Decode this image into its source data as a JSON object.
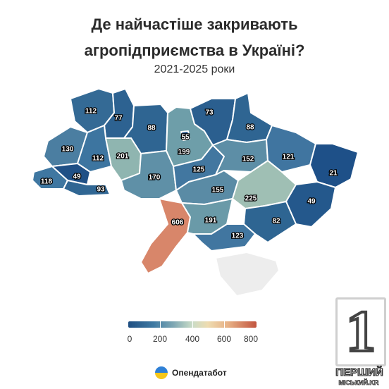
{
  "title_line1": "Де найчастіше закривають",
  "title_line2": "агропідприємства в Україні?",
  "subtitle": "2021-2025 роки",
  "regions": [
    {
      "id": "volyn",
      "value": "112",
      "color": "#346a95"
    },
    {
      "id": "rivne",
      "value": "77",
      "color": "#2d6291"
    },
    {
      "id": "zhytomyr",
      "value": "88",
      "color": "#2f6592"
    },
    {
      "id": "kyiv-oblast",
      "value": "199",
      "color": "#6e9ea9"
    },
    {
      "id": "kyiv-city",
      "value": "55",
      "color": "#1f5086"
    },
    {
      "id": "chernihiv",
      "value": "73",
      "color": "#2b5f8f"
    },
    {
      "id": "sumy",
      "value": "88",
      "color": "#2f6592"
    },
    {
      "id": "lviv",
      "value": "130",
      "color": "#4b7ea1"
    },
    {
      "id": "ternopil",
      "value": "112",
      "color": "#3d75a0"
    },
    {
      "id": "khmelnytskyi",
      "value": "201",
      "color": "#8fb5b0"
    },
    {
      "id": "zakarpattia",
      "value": "118",
      "color": "#3f77a1"
    },
    {
      "id": "ivano-frankivsk",
      "value": "49",
      "color": "#1f5086"
    },
    {
      "id": "chernivtsi",
      "value": "93",
      "color": "#306693"
    },
    {
      "id": "vinnytsia",
      "value": "170",
      "color": "#5f90a7"
    },
    {
      "id": "cherkasy",
      "value": "125",
      "color": "#4277a0"
    },
    {
      "id": "poltava",
      "value": "152",
      "color": "#5d8ea6"
    },
    {
      "id": "kharkiv",
      "value": "121",
      "color": "#4075a0"
    },
    {
      "id": "kirovohrad",
      "value": "155",
      "color": "#5a8ba5"
    },
    {
      "id": "dnipropetrovsk",
      "value": "225",
      "color": "#9fbfb4"
    },
    {
      "id": "luhansk",
      "value": "21",
      "color": "#1e5088"
    },
    {
      "id": "donetsk",
      "value": "49",
      "color": "#24588c"
    },
    {
      "id": "odesa",
      "value": "606",
      "color": "#d8866a"
    },
    {
      "id": "mykolaiv",
      "value": "191",
      "color": "#6a9aa8"
    },
    {
      "id": "zaporizhzhia",
      "value": "82",
      "color": "#2e6592"
    },
    {
      "id": "kherson",
      "value": "123",
      "color": "#4176a0"
    },
    {
      "id": "crimea",
      "value": "",
      "color": "#ededed"
    }
  ],
  "legend": {
    "ticks": [
      "0",
      "200",
      "400",
      "600",
      "800"
    ],
    "colors": [
      "#1f4f82",
      "#3f7aa3",
      "#7ea7b3",
      "#c9dcc7",
      "#eedcb1",
      "#e7b085",
      "#c2543f"
    ]
  },
  "source": {
    "name": "Опендатабот",
    "icon": "opendatabot-logo"
  },
  "watermark": {
    "digit": "1",
    "line1": "ПЕРШИЙ",
    "line2": "МІСЬКИЙ.KR"
  }
}
